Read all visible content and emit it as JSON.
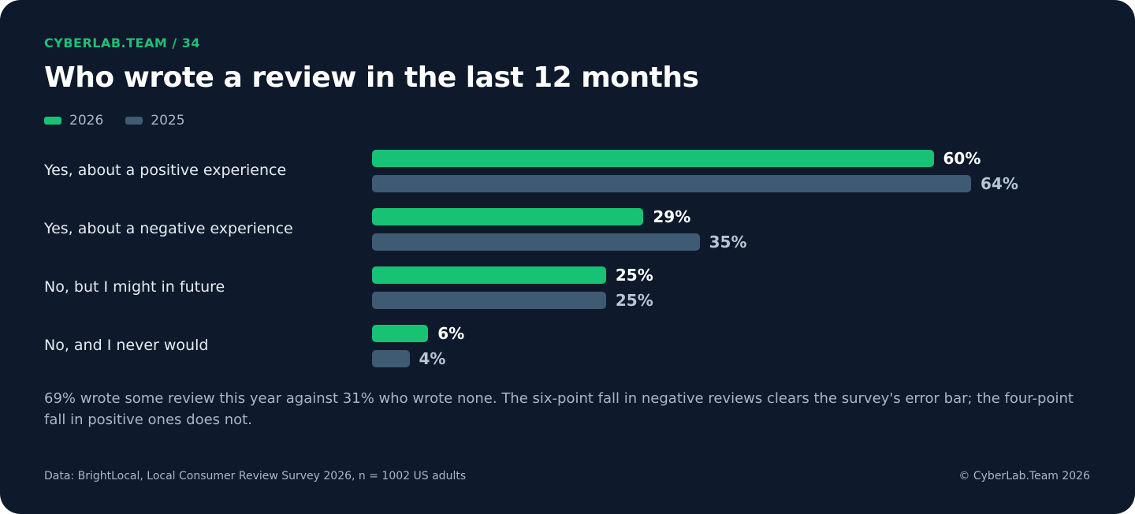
{
  "header": {
    "kicker": "CYBERLAB.TEAM / 34",
    "title": "Who wrote a review in the last 12 months"
  },
  "colors": {
    "background": "#0e1a2b",
    "accent": "#1fbf75",
    "series_2026": "#17c274",
    "series_2025": "#3f5a73"
  },
  "chart_data": {
    "type": "bar",
    "orientation": "horizontal",
    "categories": [
      "Yes, about a positive experience",
      "Yes, about a negative experience",
      "No, but I might in future",
      "No, and I never would"
    ],
    "series": [
      {
        "name": "2026",
        "values": [
          60,
          29,
          25,
          6
        ],
        "labels": [
          "60%",
          "29%",
          "25%",
          "6%"
        ]
      },
      {
        "name": "2025",
        "values": [
          64,
          35,
          25,
          4
        ],
        "labels": [
          "64%",
          "35%",
          "25%",
          "4%"
        ]
      }
    ],
    "unit": "%",
    "xlim": [
      0,
      100
    ],
    "grid": false,
    "legend": "top-left"
  },
  "footer": {
    "note": "69% wrote some review this year against 31% who wrote none. The six-point fall in negative reviews clears the survey's error bar; the four-point fall in positive ones does not.",
    "source": "Data: BrightLocal, Local Consumer Review Survey 2026, n = 1002 US adults",
    "copyright": "© CyberLab.Team  2026"
  }
}
